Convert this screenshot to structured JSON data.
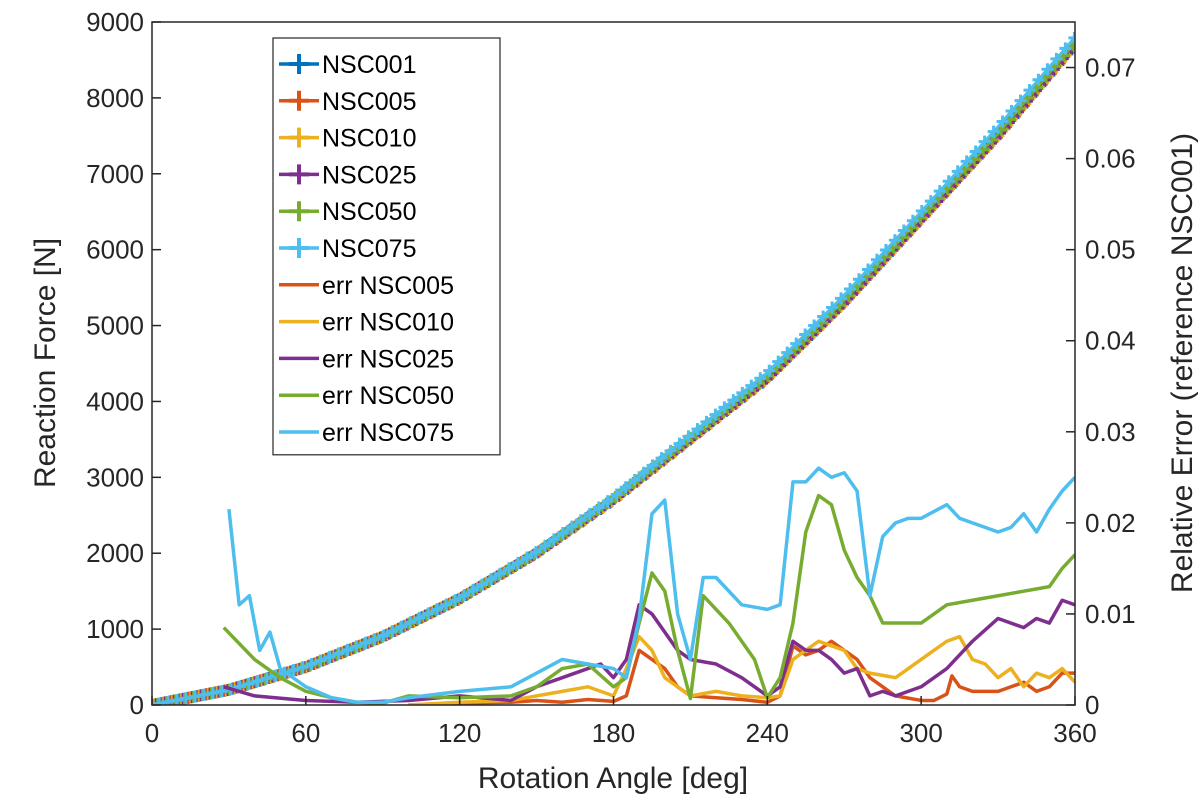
{
  "chart_data": {
    "type": "line",
    "title": "",
    "xlabel": "Rotation Angle [deg]",
    "ylabel_left": "Reaction Force [N]",
    "ylabel_right": "Relative Error (reference NSC001)",
    "xlim": [
      0,
      360
    ],
    "ylim_left": [
      0,
      9000
    ],
    "ylim_right": [
      0,
      0.075
    ],
    "xticks": [
      "0",
      "60",
      "120",
      "180",
      "240",
      "300",
      "360"
    ],
    "yticks_left": [
      "0",
      "1000",
      "2000",
      "3000",
      "4000",
      "5000",
      "6000",
      "7000",
      "8000",
      "9000"
    ],
    "yticks_right": [
      "0",
      "0.01",
      "0.02",
      "0.03",
      "0.04",
      "0.05",
      "0.06",
      "0.07"
    ],
    "grid": false,
    "legend_position": "top-left",
    "force_series": [
      {
        "name": "NSC001",
        "color": "#0072BD",
        "axis": "left",
        "marker": "plus",
        "x": [
          0,
          30,
          60,
          90,
          120,
          150,
          180,
          210,
          240,
          270,
          300,
          330,
          360
        ],
        "values": [
          0,
          200,
          500,
          900,
          1400,
          2000,
          2700,
          3500,
          4300,
          5300,
          6400,
          7500,
          8700
        ]
      },
      {
        "name": "NSC005",
        "color": "#D95319",
        "axis": "left",
        "marker": "plus",
        "x": [
          0,
          30,
          60,
          90,
          120,
          150,
          180,
          210,
          240,
          270,
          300,
          330,
          360
        ],
        "values": [
          0,
          200,
          500,
          900,
          1400,
          2000,
          2700,
          3500,
          4300,
          5300,
          6400,
          7500,
          8700
        ]
      },
      {
        "name": "NSC010",
        "color": "#EDB120",
        "axis": "left",
        "marker": "plus",
        "x": [
          0,
          30,
          60,
          90,
          120,
          150,
          180,
          210,
          240,
          270,
          300,
          330,
          360
        ],
        "values": [
          0,
          200,
          500,
          900,
          1400,
          2000,
          2700,
          3500,
          4300,
          5300,
          6400,
          7500,
          8700
        ]
      },
      {
        "name": "NSC025",
        "color": "#7E2F8E",
        "axis": "left",
        "marker": "plus",
        "x": [
          0,
          30,
          60,
          90,
          120,
          150,
          180,
          210,
          240,
          270,
          300,
          330,
          360
        ],
        "values": [
          0,
          200,
          500,
          900,
          1400,
          2000,
          2710,
          3510,
          4310,
          5310,
          6410,
          7510,
          8710
        ]
      },
      {
        "name": "NSC050",
        "color": "#77AC30",
        "axis": "left",
        "marker": "plus",
        "x": [
          0,
          30,
          60,
          90,
          120,
          150,
          180,
          210,
          240,
          270,
          300,
          330,
          360
        ],
        "values": [
          0,
          200,
          500,
          900,
          1400,
          2000,
          2720,
          3520,
          4330,
          5330,
          6430,
          7530,
          8730
        ]
      },
      {
        "name": "NSC075",
        "color": "#4DBEEE",
        "axis": "left",
        "marker": "plus",
        "x": [
          0,
          30,
          60,
          90,
          120,
          150,
          180,
          210,
          240,
          270,
          300,
          330,
          360
        ],
        "values": [
          0,
          200,
          510,
          910,
          1410,
          2020,
          2740,
          3560,
          4380,
          5400,
          6500,
          7620,
          8800
        ]
      }
    ],
    "error_series": [
      {
        "name": "err NSC005",
        "color": "#D95319",
        "axis": "right",
        "x": [
          100,
          120,
          140,
          150,
          160,
          170,
          180,
          185,
          190,
          195,
          200,
          205,
          210,
          220,
          230,
          240,
          245,
          250,
          255,
          260,
          265,
          270,
          275,
          280,
          290,
          300,
          305,
          310,
          312,
          315,
          320,
          330,
          340,
          345,
          350,
          355,
          360
        ],
        "values": [
          0.0,
          0.0002,
          0.0003,
          0.0005,
          0.0003,
          0.0006,
          0.0004,
          0.001,
          0.006,
          0.005,
          0.004,
          0.002,
          0.001,
          0.0008,
          0.0006,
          0.0003,
          0.001,
          0.0065,
          0.0055,
          0.006,
          0.007,
          0.006,
          0.005,
          0.003,
          0.001,
          0.0005,
          0.0005,
          0.0012,
          0.0032,
          0.002,
          0.0015,
          0.0015,
          0.0025,
          0.0015,
          0.002,
          0.0035,
          0.0035
        ]
      },
      {
        "name": "err NSC010",
        "color": "#EDB120",
        "axis": "right",
        "x": [
          100,
          120,
          140,
          160,
          170,
          180,
          185,
          190,
          195,
          200,
          205,
          210,
          220,
          230,
          240,
          245,
          250,
          255,
          260,
          265,
          270,
          275,
          280,
          290,
          300,
          305,
          310,
          315,
          320,
          325,
          330,
          335,
          340,
          345,
          350,
          355,
          360
        ],
        "values": [
          0.0,
          0.0003,
          0.0005,
          0.0015,
          0.002,
          0.001,
          0.004,
          0.0075,
          0.006,
          0.003,
          0.002,
          0.001,
          0.0015,
          0.001,
          0.0008,
          0.001,
          0.005,
          0.006,
          0.007,
          0.0065,
          0.006,
          0.004,
          0.0035,
          0.003,
          0.005,
          0.006,
          0.007,
          0.0075,
          0.005,
          0.0045,
          0.003,
          0.004,
          0.002,
          0.0035,
          0.003,
          0.004,
          0.0025
        ]
      },
      {
        "name": "err NSC025",
        "color": "#7E2F8E",
        "axis": "right",
        "x": [
          28,
          40,
          60,
          80,
          100,
          120,
          140,
          150,
          160,
          170,
          175,
          180,
          185,
          190,
          195,
          200,
          205,
          210,
          220,
          230,
          240,
          245,
          250,
          255,
          260,
          265,
          270,
          275,
          280,
          285,
          290,
          300,
          310,
          320,
          330,
          340,
          345,
          350,
          355,
          360
        ],
        "values": [
          0.002,
          0.001,
          0.0005,
          0.0003,
          0.0005,
          0.001,
          0.0005,
          0.002,
          0.003,
          0.004,
          0.0045,
          0.003,
          0.005,
          0.011,
          0.01,
          0.008,
          0.006,
          0.005,
          0.0045,
          0.003,
          0.001,
          0.002,
          0.007,
          0.006,
          0.006,
          0.005,
          0.0035,
          0.004,
          0.001,
          0.0015,
          0.001,
          0.002,
          0.004,
          0.007,
          0.0095,
          0.0085,
          0.0095,
          0.009,
          0.0115,
          0.011
        ]
      },
      {
        "name": "err NSC050",
        "color": "#77AC30",
        "axis": "right",
        "x": [
          28,
          40,
          50,
          60,
          70,
          80,
          90,
          100,
          120,
          140,
          150,
          160,
          170,
          180,
          185,
          190,
          195,
          200,
          205,
          210,
          215,
          225,
          235,
          240,
          245,
          250,
          255,
          260,
          265,
          270,
          275,
          280,
          285,
          290,
          300,
          310,
          320,
          330,
          340,
          350,
          355,
          360
        ],
        "values": [
          0.0085,
          0.005,
          0.003,
          0.0015,
          0.0008,
          0.0003,
          0.0002,
          0.001,
          0.0008,
          0.001,
          0.002,
          0.004,
          0.0045,
          0.002,
          0.003,
          0.009,
          0.0145,
          0.0125,
          0.006,
          0.0007,
          0.012,
          0.009,
          0.005,
          0.0008,
          0.003,
          0.009,
          0.019,
          0.023,
          0.022,
          0.017,
          0.014,
          0.012,
          0.009,
          0.009,
          0.009,
          0.011,
          0.0115,
          0.012,
          0.0125,
          0.013,
          0.015,
          0.0165
        ]
      },
      {
        "name": "err NSC075",
        "color": "#4DBEEE",
        "axis": "right",
        "x": [
          30,
          34,
          38,
          42,
          46,
          50,
          55,
          60,
          70,
          80,
          90,
          100,
          120,
          140,
          160,
          170,
          180,
          185,
          190,
          195,
          200,
          205,
          210,
          215,
          220,
          230,
          240,
          245,
          250,
          255,
          260,
          265,
          270,
          275,
          280,
          285,
          290,
          295,
          300,
          310,
          315,
          320,
          330,
          335,
          340,
          345,
          350,
          355,
          360
        ],
        "values": [
          0.0215,
          0.011,
          0.012,
          0.006,
          0.008,
          0.004,
          0.003,
          0.002,
          0.0008,
          0.0003,
          0.0003,
          0.0008,
          0.0015,
          0.002,
          0.005,
          0.0045,
          0.004,
          0.003,
          0.0095,
          0.021,
          0.0225,
          0.01,
          0.005,
          0.014,
          0.014,
          0.011,
          0.0105,
          0.011,
          0.0245,
          0.0245,
          0.026,
          0.025,
          0.0255,
          0.0235,
          0.012,
          0.0185,
          0.02,
          0.0205,
          0.0205,
          0.022,
          0.0205,
          0.02,
          0.019,
          0.0195,
          0.021,
          0.019,
          0.0215,
          0.0235,
          0.025
        ]
      }
    ]
  }
}
